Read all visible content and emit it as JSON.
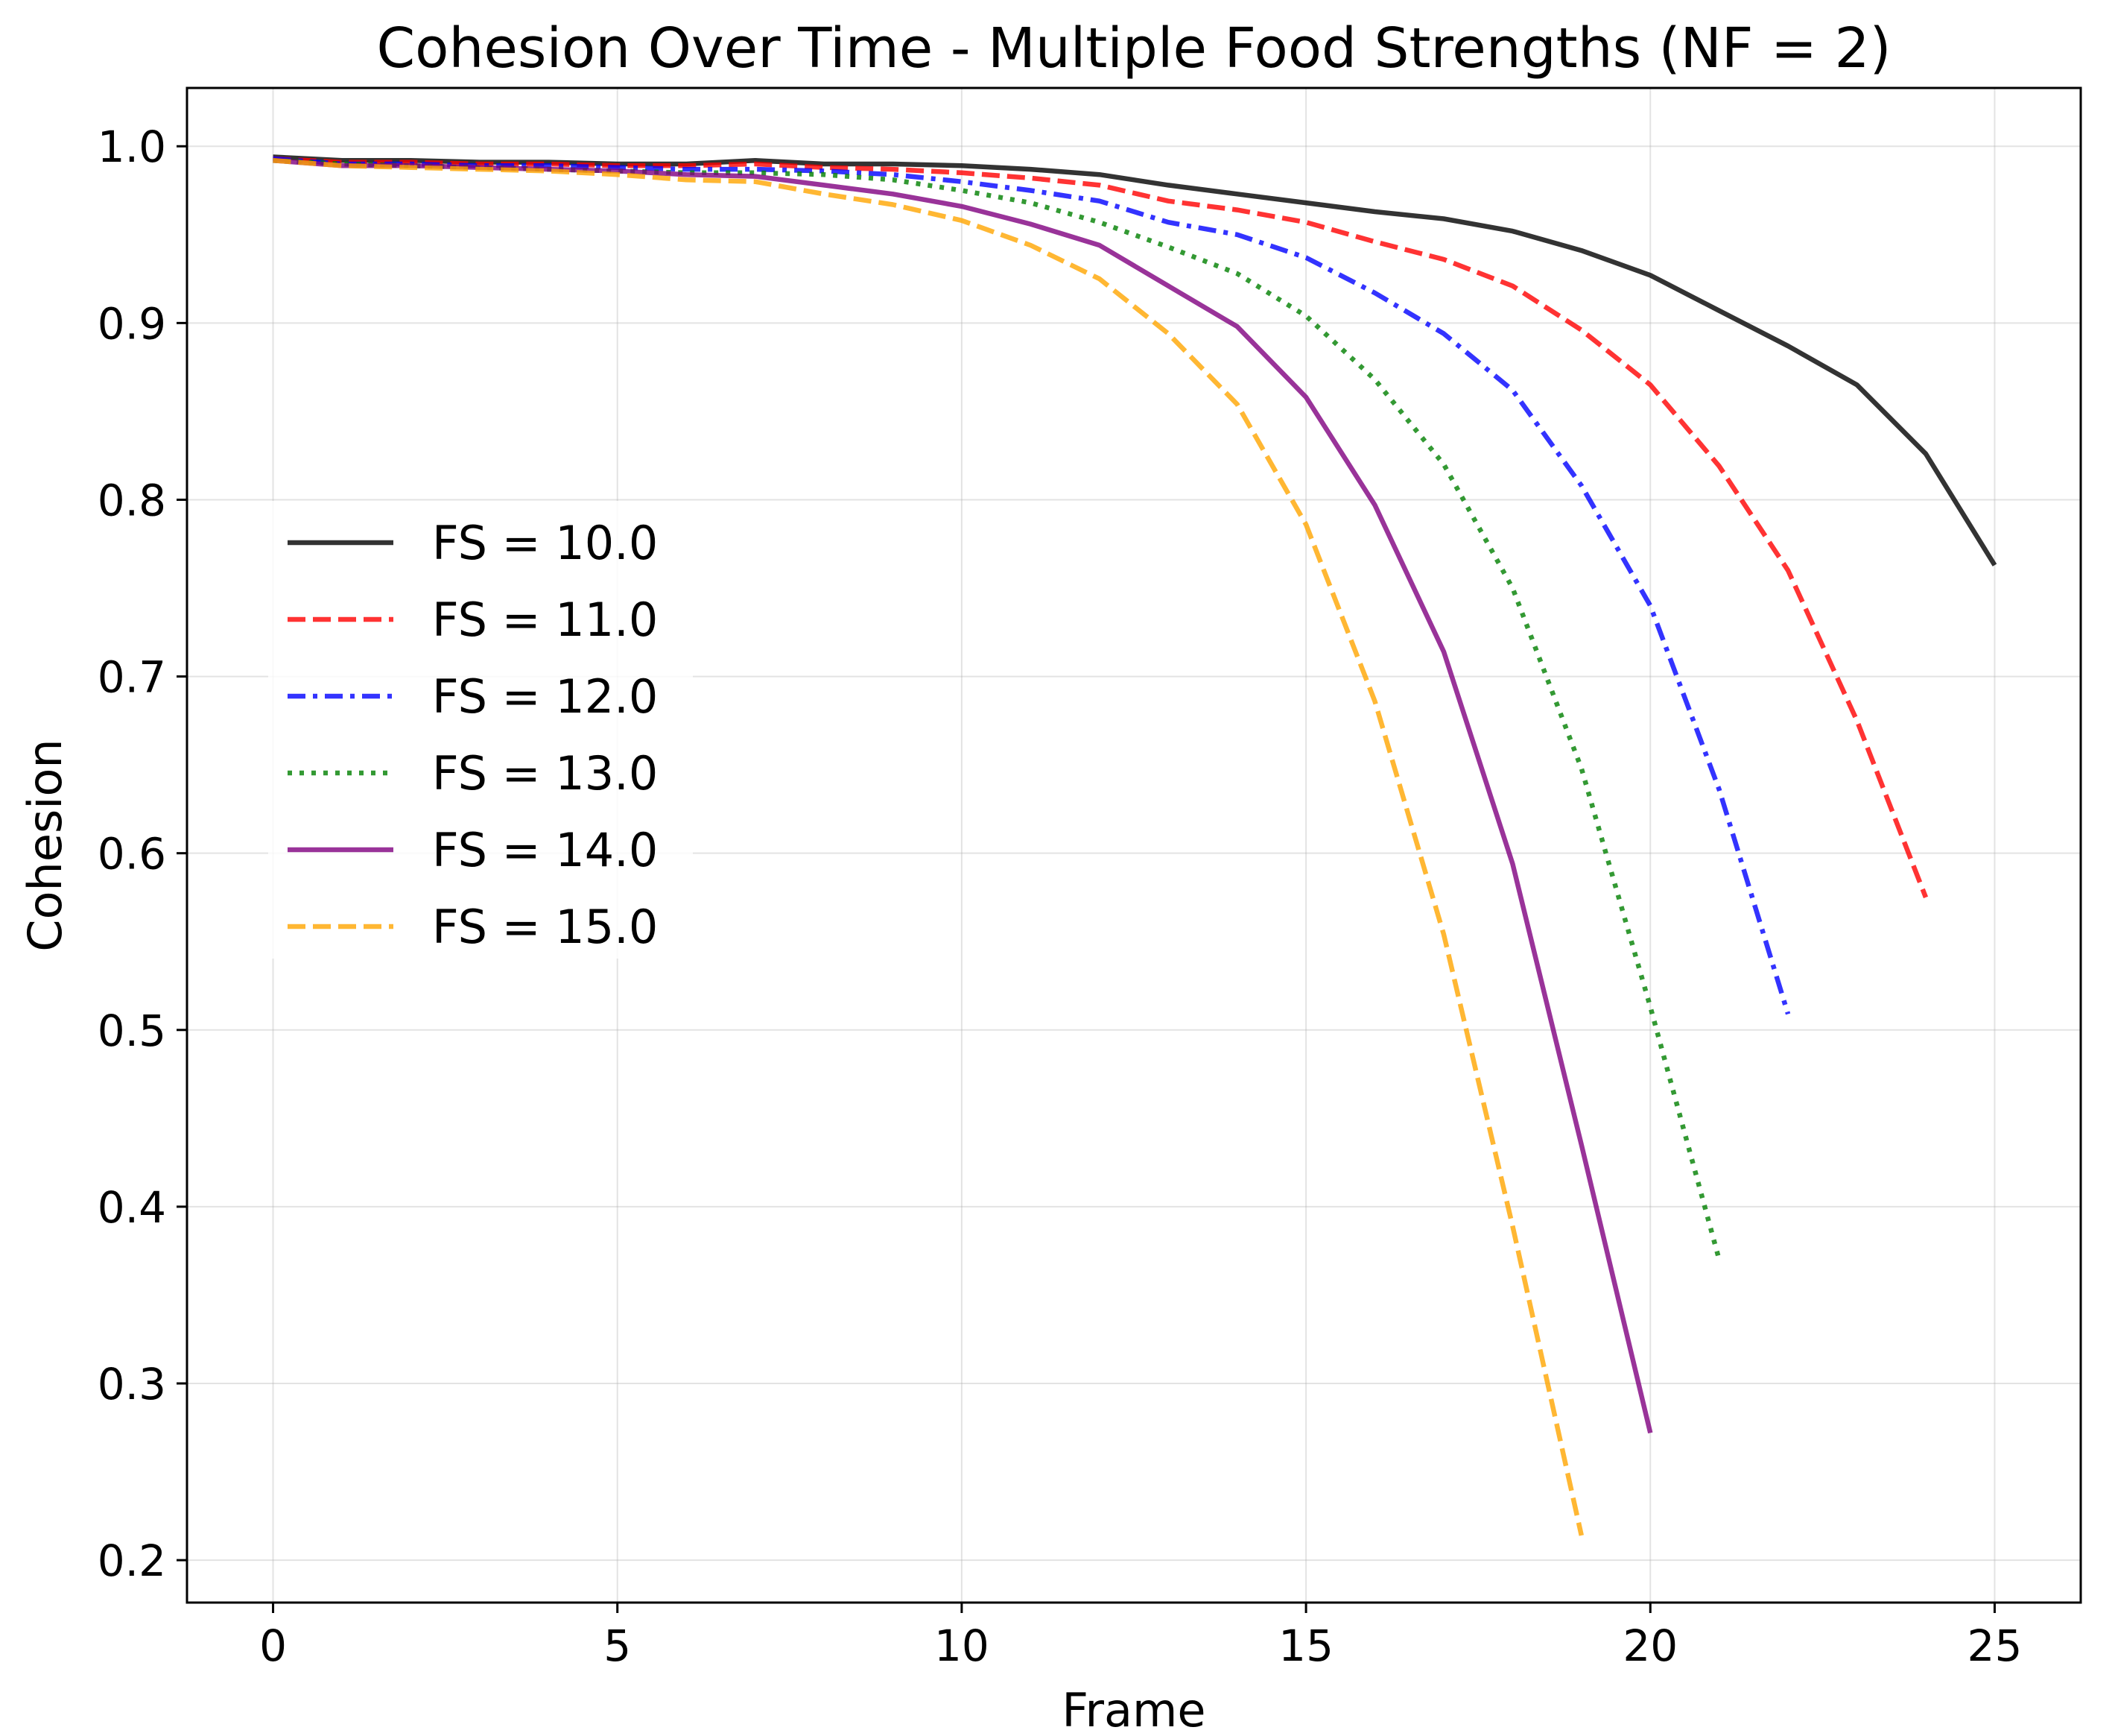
{
  "chart_data": {
    "type": "line",
    "title": "Cohesion Over Time - Multiple Food Strengths (NF = 2)",
    "xlabel": "Frame",
    "ylabel": "Cohesion",
    "xlim": [
      -1.25,
      26.25
    ],
    "ylim": [
      0.176,
      1.033
    ],
    "xticks": [
      0,
      5,
      10,
      15,
      20,
      25
    ],
    "yticks": [
      0.2,
      0.3,
      0.4,
      0.5,
      0.6,
      0.7,
      0.8,
      0.9,
      1.0
    ],
    "grid": true,
    "legend_position": "center-left",
    "series": [
      {
        "name": "FS = 10.0",
        "color": "#000000",
        "dash": "solid",
        "x": [
          0,
          1,
          2,
          3,
          4,
          5,
          6,
          7,
          8,
          9,
          10,
          11,
          12,
          13,
          14,
          15,
          16,
          17,
          18,
          19,
          20,
          21,
          22,
          23,
          24,
          25
        ],
        "y": [
          0.994,
          0.992,
          0.992,
          0.991,
          0.991,
          0.99,
          0.99,
          0.992,
          0.99,
          0.99,
          0.989,
          0.987,
          0.984,
          0.978,
          0.973,
          0.968,
          0.963,
          0.959,
          0.952,
          0.941,
          0.927,
          0.907,
          0.887,
          0.865,
          0.826,
          0.763
        ]
      },
      {
        "name": "FS = 11.0",
        "color": "#ff0000",
        "dash": "dashed",
        "x": [
          0,
          1,
          2,
          3,
          4,
          5,
          6,
          7,
          8,
          9,
          10,
          11,
          12,
          13,
          14,
          15,
          16,
          17,
          18,
          19,
          20,
          21,
          22,
          23,
          24
        ],
        "y": [
          0.993,
          0.991,
          0.991,
          0.99,
          0.99,
          0.989,
          0.989,
          0.99,
          0.988,
          0.987,
          0.985,
          0.982,
          0.978,
          0.969,
          0.964,
          0.957,
          0.946,
          0.936,
          0.921,
          0.896,
          0.865,
          0.819,
          0.76,
          0.675,
          0.575
        ]
      },
      {
        "name": "FS = 12.0",
        "color": "#0000ff",
        "dash": "dashdot",
        "x": [
          0,
          1,
          2,
          3,
          4,
          5,
          6,
          7,
          8,
          9,
          10,
          11,
          12,
          13,
          14,
          15,
          16,
          17,
          18,
          19,
          20,
          21,
          22
        ],
        "y": [
          0.993,
          0.99,
          0.99,
          0.989,
          0.989,
          0.988,
          0.987,
          0.987,
          0.986,
          0.984,
          0.98,
          0.975,
          0.969,
          0.957,
          0.95,
          0.937,
          0.917,
          0.894,
          0.862,
          0.808,
          0.74,
          0.636,
          0.509
        ]
      },
      {
        "name": "FS = 13.0",
        "color": "#008000",
        "dash": "dotted",
        "x": [
          0,
          1,
          2,
          3,
          4,
          5,
          6,
          7,
          8,
          9,
          10,
          11,
          12,
          13,
          14,
          15,
          16,
          17,
          18,
          19,
          20,
          21
        ],
        "y": [
          0.992,
          0.99,
          0.989,
          0.988,
          0.987,
          0.986,
          0.985,
          0.985,
          0.984,
          0.981,
          0.975,
          0.968,
          0.957,
          0.943,
          0.928,
          0.904,
          0.868,
          0.82,
          0.75,
          0.648,
          0.513,
          0.37
        ]
      },
      {
        "name": "FS = 14.0",
        "color": "#800080",
        "dash": "solid",
        "x": [
          0,
          1,
          2,
          3,
          4,
          5,
          6,
          7,
          8,
          9,
          10,
          11,
          12,
          13,
          14,
          15,
          16,
          17,
          18,
          19,
          20
        ],
        "y": [
          0.992,
          0.989,
          0.989,
          0.988,
          0.987,
          0.986,
          0.984,
          0.983,
          0.978,
          0.973,
          0.966,
          0.956,
          0.944,
          0.921,
          0.898,
          0.858,
          0.797,
          0.714,
          0.594,
          0.435,
          0.272
        ]
      },
      {
        "name": "FS = 15.0",
        "color": "#ffa500",
        "dash": "dashed",
        "x": [
          0,
          1,
          2,
          3,
          4,
          5,
          6,
          7,
          8,
          9,
          10,
          11,
          12,
          13,
          14,
          15,
          16,
          17,
          18,
          19
        ],
        "y": [
          0.992,
          0.989,
          0.988,
          0.987,
          0.986,
          0.984,
          0.981,
          0.98,
          0.973,
          0.967,
          0.958,
          0.944,
          0.925,
          0.894,
          0.854,
          0.786,
          0.686,
          0.554,
          0.389,
          0.214
        ]
      }
    ]
  }
}
